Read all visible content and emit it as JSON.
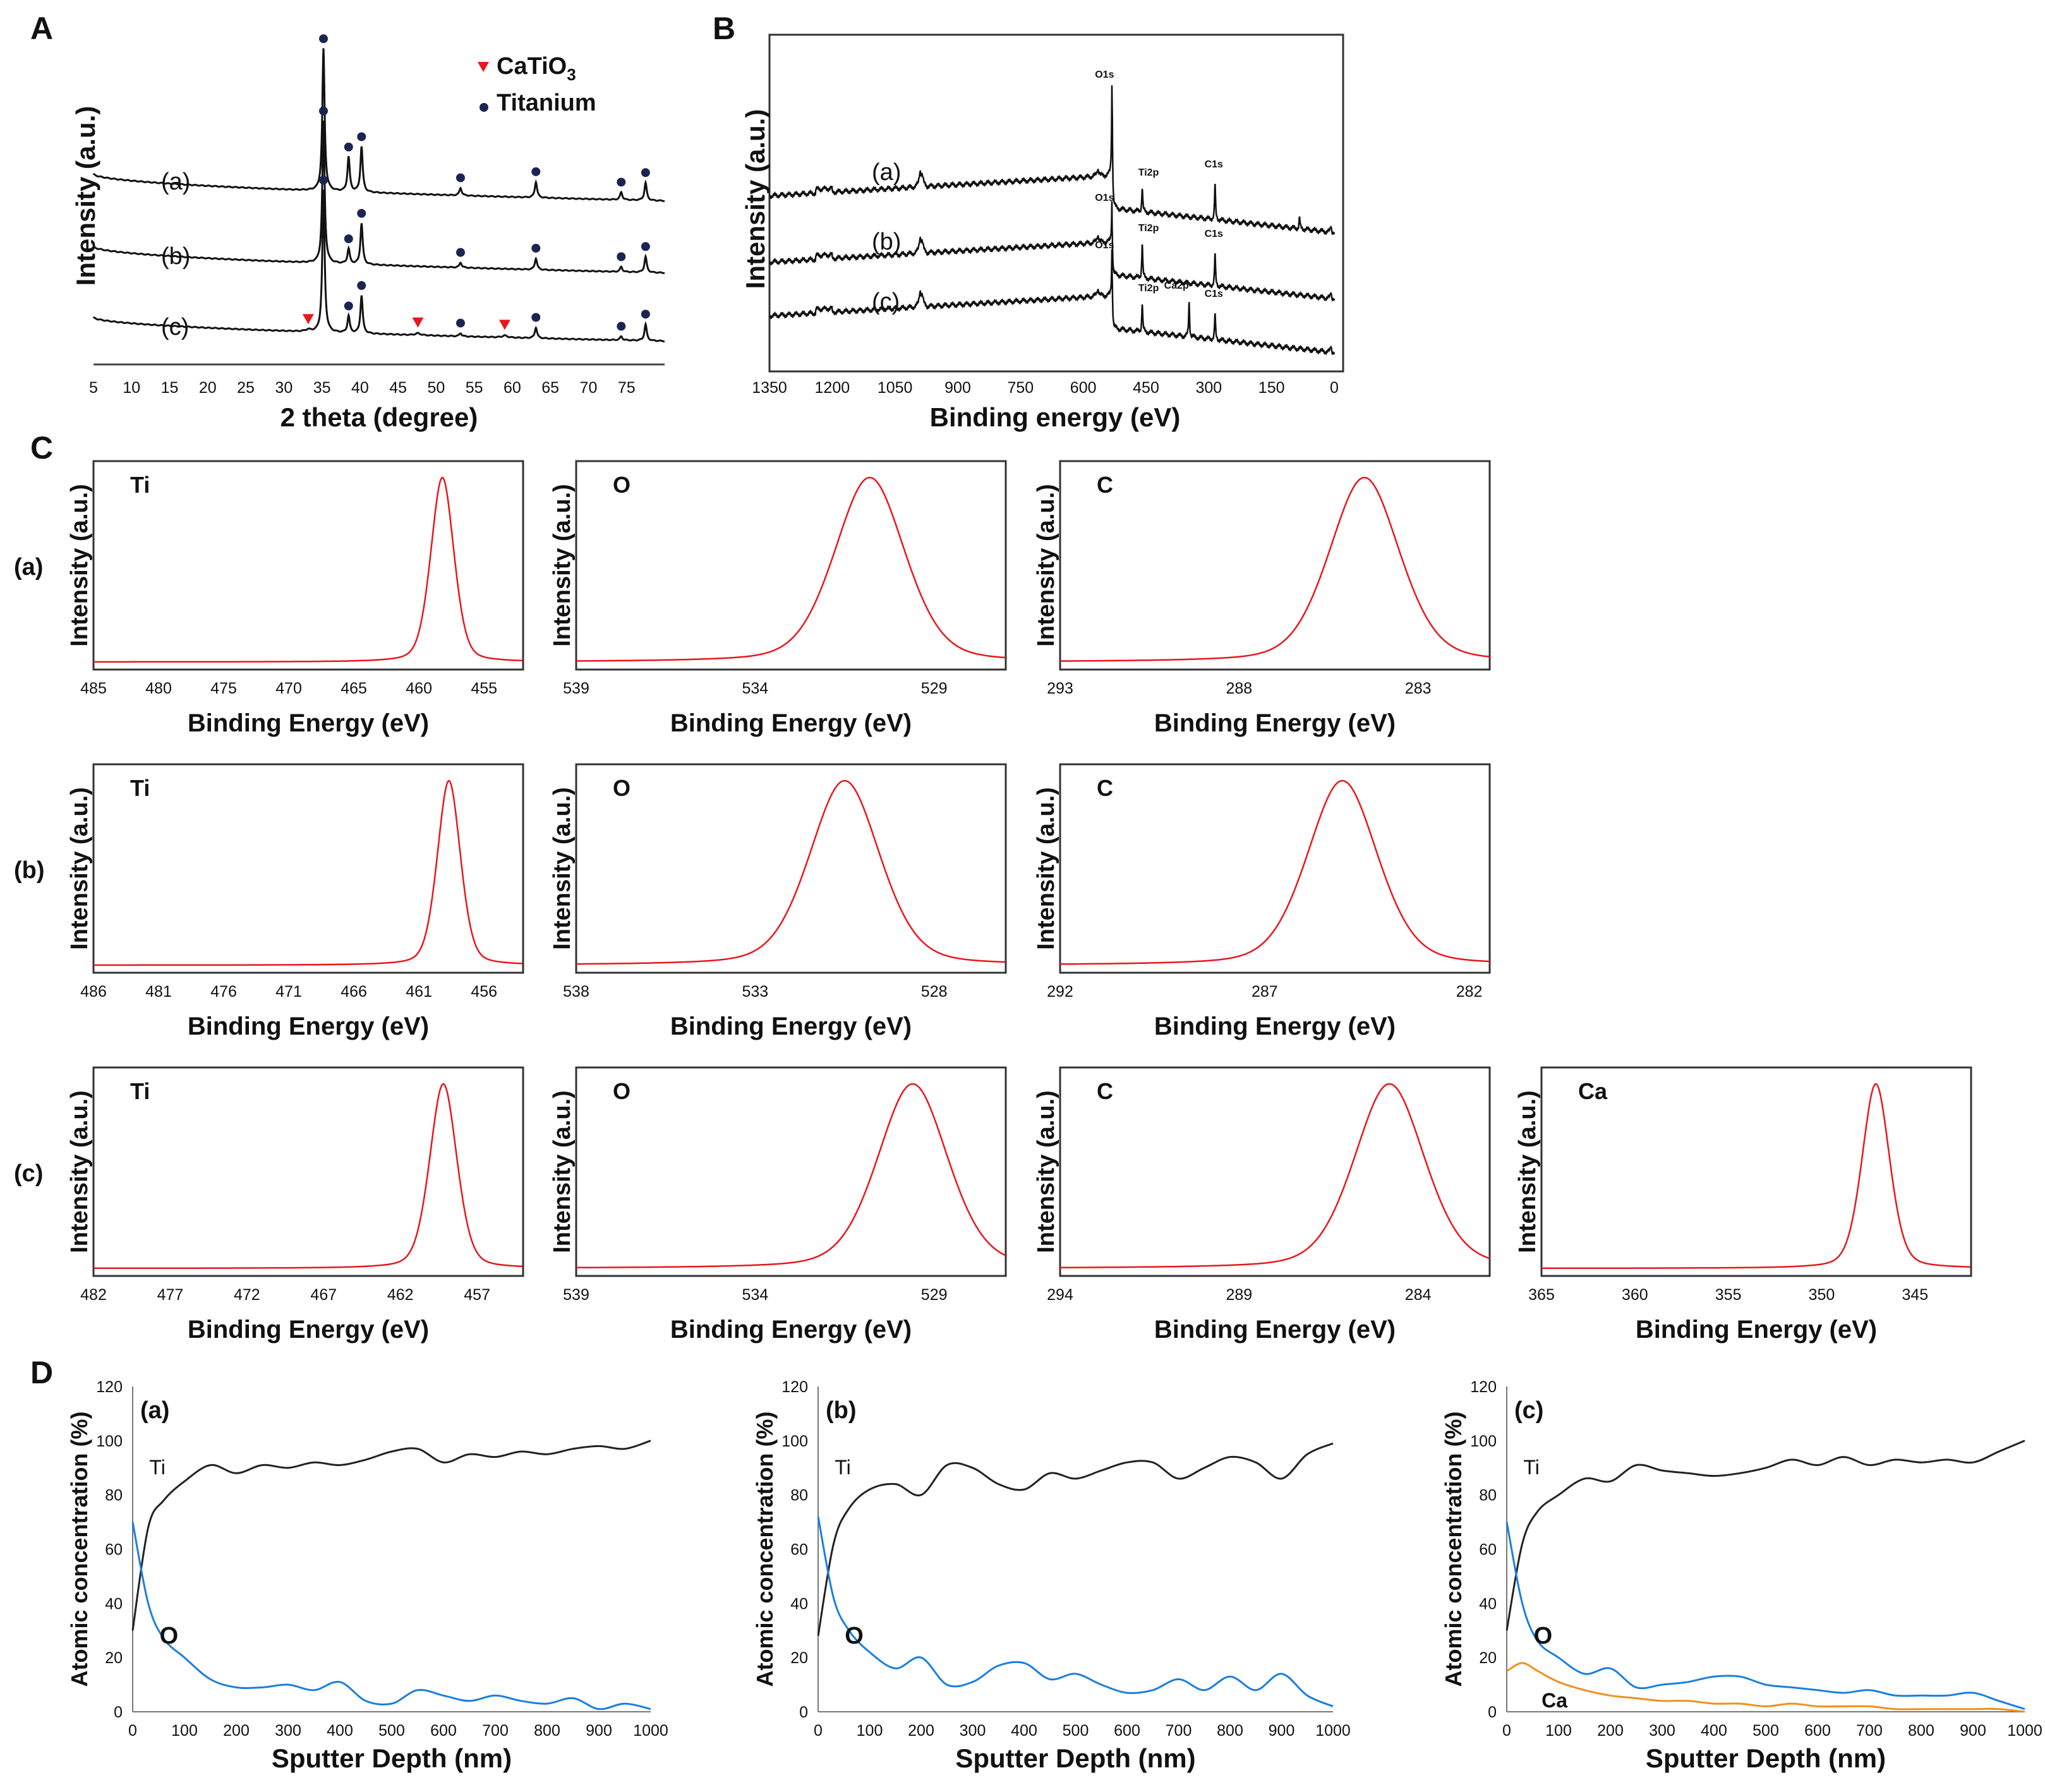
{
  "panel_labels": {
    "A": "A",
    "B": "B",
    "C": "C",
    "D": "D"
  },
  "chart_data": [
    {
      "id": "A",
      "type": "line",
      "xlabel": "2 theta (degree)",
      "ylabel": "Intensity (a.u.)",
      "xlim": [
        5,
        80
      ],
      "xticks": [
        "5",
        "10",
        "15",
        "20",
        "25",
        "30",
        "35",
        "40",
        "45",
        "50",
        "55",
        "60",
        "65",
        "70",
        "75"
      ],
      "legend": [
        {
          "label": "CaTiO3",
          "label_main": "CaTiO",
          "label_sub": "3",
          "marker": "triangle",
          "color": "#e8171d"
        },
        {
          "label": "Titanium",
          "marker": "circle",
          "color": "#1c2452"
        }
      ],
      "series": [
        {
          "name": "(a)",
          "titanium_peaks": [
            35.2,
            38.5,
            40.2,
            53.2,
            63.1,
            74.3,
            77.5
          ]
        },
        {
          "name": "(b)",
          "titanium_peaks": [
            35.2,
            38.5,
            40.2,
            53.2,
            63.1,
            74.3,
            77.5
          ]
        },
        {
          "name": "(c)",
          "titanium_peaks": [
            35.2,
            38.5,
            40.2,
            53.2,
            63.1,
            74.3,
            77.5
          ],
          "catio3_peaks": [
            33.2,
            47.6,
            59.0
          ]
        }
      ]
    },
    {
      "id": "B",
      "type": "line",
      "xlabel": "Binding energy (eV)",
      "ylabel": "Intensity (a.u.)",
      "xlim": [
        1350,
        0
      ],
      "xticks": [
        "1350",
        "1200",
        "1050",
        "900",
        "750",
        "600",
        "450",
        "300",
        "150",
        "0"
      ],
      "series": [
        {
          "name": "(a)",
          "peaks": [
            {
              "label": "O1s",
              "x": 531
            },
            {
              "label": "Ti2p",
              "x": 459
            },
            {
              "label": "C1s",
              "x": 285
            }
          ]
        },
        {
          "name": "(b)",
          "peaks": [
            {
              "label": "O1s",
              "x": 531
            },
            {
              "label": "Ti2p",
              "x": 459
            },
            {
              "label": "C1s",
              "x": 285
            }
          ]
        },
        {
          "name": "(c)",
          "peaks": [
            {
              "label": "O1s",
              "x": 531
            },
            {
              "label": "Ti2p",
              "x": 459
            },
            {
              "label": "Ca2p",
              "x": 347
            },
            {
              "label": "C1s",
              "x": 285
            }
          ]
        }
      ]
    },
    {
      "id": "C",
      "type": "line",
      "xlabel": "Binding Energy (eV)",
      "ylabel": "Intensity (a.u.)",
      "rows": [
        {
          "row": "(a)",
          "panels": [
            {
              "element": "Ti",
              "xticks": [
                "485",
                "480",
                "475",
                "470",
                "465",
                "460",
                "455"
              ],
              "xlim": [
                485,
                452
              ],
              "peak": 458.2
            },
            {
              "element": "O",
              "xticks": [
                "539",
                "534",
                "529"
              ],
              "xlim": [
                539,
                527
              ],
              "peak": 530.8
            },
            {
              "element": "C",
              "xticks": [
                "293",
                "288",
                "283"
              ],
              "xlim": [
                293,
                281
              ],
              "peak": 284.5
            }
          ]
        },
        {
          "row": "(b)",
          "panels": [
            {
              "element": "Ti",
              "xticks": [
                "486",
                "481",
                "476",
                "471",
                "466",
                "461",
                "456"
              ],
              "xlim": [
                486,
                453
              ],
              "peak": 458.7
            },
            {
              "element": "O",
              "xticks": [
                "538",
                "533",
                "528"
              ],
              "xlim": [
                538,
                526
              ],
              "peak": 530.5
            },
            {
              "element": "C",
              "xticks": [
                "292",
                "287",
                "282"
              ],
              "xlim": [
                292,
                281.5
              ],
              "peak": 285.1
            }
          ]
        },
        {
          "row": "(c)",
          "panels": [
            {
              "element": "Ti",
              "xticks": [
                "482",
                "477",
                "472",
                "467",
                "462",
                "457"
              ],
              "xlim": [
                482,
                454
              ],
              "peak": 459.2
            },
            {
              "element": "O",
              "xticks": [
                "539",
                "534",
                "529"
              ],
              "xlim": [
                539,
                527
              ],
              "peak": 529.6
            },
            {
              "element": "C",
              "xticks": [
                "294",
                "289",
                "284"
              ],
              "xlim": [
                294,
                282
              ],
              "peak": 284.8
            },
            {
              "element": "Ca",
              "xticks": [
                "365",
                "360",
                "355",
                "350",
                "345"
              ],
              "xlim": [
                365,
                342
              ],
              "peak": 347.1
            }
          ]
        }
      ]
    },
    {
      "id": "D",
      "type": "line",
      "xlabel": "Sputter Depth (nm)",
      "ylabel": "Atomic concentration (%)",
      "xlim": [
        0,
        1000
      ],
      "ylim": [
        0,
        120
      ],
      "xticks": [
        "0",
        "100",
        "200",
        "300",
        "400",
        "500",
        "600",
        "700",
        "800",
        "900",
        "1000"
      ],
      "yticks": [
        "0",
        "20",
        "40",
        "60",
        "80",
        "100",
        "120"
      ],
      "panels": [
        {
          "label": "(a)",
          "x": [
            0,
            30,
            60,
            100,
            150,
            200,
            250,
            300,
            350,
            400,
            450,
            500,
            550,
            600,
            650,
            700,
            750,
            800,
            850,
            900,
            950,
            1000
          ],
          "series": [
            {
              "name": "Ti",
              "color": "#222222",
              "values": [
                30,
                68,
                78,
                85,
                91,
                88,
                91,
                90,
                92,
                91,
                93,
                96,
                97,
                92,
                95,
                94,
                96,
                95,
                97,
                98,
                97,
                100
              ]
            },
            {
              "name": "O",
              "color": "#1a7ee0",
              "values": [
                70,
                40,
                27,
                20,
                12,
                9,
                9,
                10,
                8,
                11,
                4,
                3,
                8,
                6,
                4,
                6,
                4,
                3,
                5,
                1,
                3,
                1
              ]
            }
          ]
        },
        {
          "label": "(b)",
          "x": [
            0,
            30,
            60,
            100,
            150,
            200,
            250,
            300,
            350,
            400,
            450,
            500,
            550,
            600,
            650,
            700,
            750,
            800,
            850,
            900,
            950,
            1000
          ],
          "series": [
            {
              "name": "Ti",
              "color": "#222222",
              "values": [
                28,
                62,
                75,
                82,
                84,
                80,
                91,
                90,
                84,
                82,
                88,
                86,
                89,
                92,
                92,
                86,
                90,
                94,
                92,
                86,
                95,
                99
              ]
            },
            {
              "name": "O",
              "color": "#1a7ee0",
              "values": [
                72,
                42,
                30,
                22,
                16,
                20,
                10,
                11,
                17,
                18,
                12,
                14,
                10,
                7,
                8,
                12,
                8,
                13,
                8,
                14,
                6,
                2
              ]
            }
          ]
        },
        {
          "label": "(c)",
          "x": [
            0,
            30,
            60,
            100,
            150,
            200,
            250,
            300,
            350,
            400,
            450,
            500,
            550,
            600,
            650,
            700,
            750,
            800,
            850,
            900,
            950,
            1000
          ],
          "series": [
            {
              "name": "Ti",
              "color": "#222222",
              "values": [
                30,
                62,
                74,
                80,
                86,
                85,
                91,
                89,
                88,
                87,
                88,
                90,
                93,
                91,
                94,
                91,
                93,
                92,
                93,
                92,
                96,
                100
              ]
            },
            {
              "name": "O",
              "color": "#1a7ee0",
              "values": [
                70,
                40,
                26,
                20,
                14,
                16,
                9,
                10,
                11,
                13,
                13,
                10,
                9,
                8,
                7,
                8,
                6,
                6,
                6,
                7,
                4,
                1
              ]
            },
            {
              "name": "Ca",
              "color": "#f0901c",
              "values": [
                15,
                18,
                15,
                11,
                8,
                6,
                5,
                4,
                4,
                3,
                3,
                2,
                3,
                2,
                2,
                2,
                1,
                1,
                1,
                1,
                1,
                0
              ]
            }
          ]
        }
      ]
    }
  ]
}
